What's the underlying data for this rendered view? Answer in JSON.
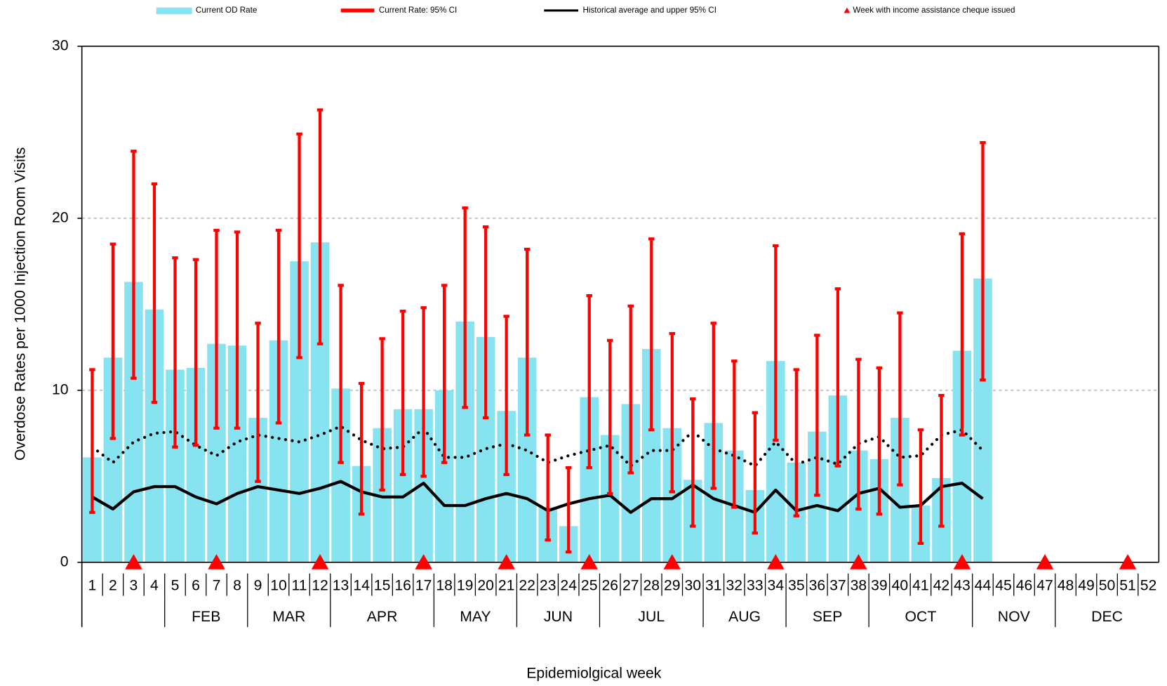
{
  "chart_data": {
    "type": "bar",
    "y_label": "Overdose Rates per 1000 Injection Room Visits",
    "x_label": "Epidemiolgical week",
    "ylim": [
      0,
      30
    ],
    "yticks": [
      0,
      10,
      20,
      30
    ],
    "grid": true,
    "legend": "top",
    "categories": [
      "1",
      "2",
      "3",
      "4",
      "5",
      "6",
      "7",
      "8",
      "9",
      "10",
      "11",
      "12",
      "13",
      "14",
      "15",
      "16",
      "17",
      "18",
      "19",
      "20",
      "21",
      "22",
      "23",
      "24",
      "25",
      "26",
      "27",
      "28",
      "29",
      "30",
      "31",
      "32",
      "33",
      "34",
      "35",
      "36",
      "37",
      "38",
      "39",
      "40",
      "41",
      "42",
      "43",
      "44",
      "45",
      "46",
      "47",
      "48",
      "49",
      "50",
      "51",
      "52"
    ],
    "months": [
      null,
      null,
      null,
      null,
      "FEB",
      "FEB",
      "FEB",
      "FEB",
      "MAR",
      "MAR",
      "MAR",
      "MAR",
      "APR",
      "APR",
      "APR",
      "APR",
      "APR",
      "MAY",
      "MAY",
      "MAY",
      "MAY",
      "JUN",
      "JUN",
      "JUN",
      "JUN",
      "JUL",
      "JUL",
      "JUL",
      "JUL",
      "JUL",
      "AUG",
      "AUG",
      "AUG",
      "AUG",
      "SEP",
      "SEP",
      "SEP",
      "SEP",
      "OCT",
      "OCT",
      "OCT",
      "OCT",
      "OCT",
      "NOV",
      "NOV",
      "NOV",
      "NOV",
      "DEC",
      "DEC",
      "DEC",
      "DEC",
      "DEC"
    ],
    "series": [
      {
        "name": "Current OD Rate",
        "color": "#87e3f0",
        "values": [
          6.1,
          11.9,
          16.3,
          14.7,
          11.2,
          11.3,
          12.7,
          12.6,
          8.4,
          12.9,
          17.5,
          18.6,
          10.1,
          5.6,
          7.8,
          8.9,
          8.9,
          10.0,
          14.0,
          13.1,
          8.8,
          11.9,
          3.2,
          2.1,
          9.6,
          7.4,
          9.2,
          12.4,
          7.8,
          4.8,
          8.1,
          6.5,
          4.2,
          11.7,
          5.8,
          7.6,
          9.7,
          6.5,
          6.0,
          8.4,
          3.3,
          4.9,
          12.3,
          16.5,
          null,
          null,
          null,
          null,
          null,
          null,
          null,
          null
        ]
      },
      {
        "name": "Current Rate: 95% CI",
        "color": "#ff0000",
        "lower": [
          2.9,
          7.2,
          10.7,
          9.3,
          6.7,
          6.8,
          7.8,
          7.8,
          4.7,
          8.1,
          11.9,
          12.7,
          5.8,
          2.8,
          4.2,
          5.1,
          5.0,
          5.8,
          9.0,
          8.4,
          5.1,
          7.4,
          1.3,
          0.6,
          5.5,
          4.0,
          5.2,
          7.7,
          4.1,
          2.1,
          4.3,
          3.2,
          1.7,
          7.1,
          2.7,
          3.9,
          5.6,
          3.1,
          2.8,
          4.5,
          1.1,
          2.1,
          7.4,
          10.6,
          null,
          null,
          null,
          null,
          null,
          null,
          null,
          null
        ],
        "upper": [
          11.2,
          18.5,
          23.9,
          22.0,
          17.7,
          17.6,
          19.3,
          19.2,
          13.9,
          19.3,
          24.9,
          26.3,
          16.1,
          10.4,
          13.0,
          14.6,
          14.8,
          16.1,
          20.6,
          19.5,
          14.3,
          18.2,
          7.4,
          5.5,
          15.5,
          12.9,
          14.9,
          18.8,
          13.3,
          9.5,
          13.9,
          11.7,
          8.7,
          18.4,
          11.2,
          13.2,
          15.9,
          11.8,
          11.3,
          14.5,
          7.7,
          9.7,
          19.1,
          24.4,
          null,
          null,
          null,
          null,
          null,
          null,
          null,
          null
        ]
      },
      {
        "name": "Historical average and upper 95% CI",
        "color": "#000000",
        "values": [
          3.8,
          3.1,
          4.1,
          4.4,
          4.4,
          3.8,
          3.4,
          4.0,
          4.4,
          4.2,
          4.0,
          4.3,
          4.7,
          4.1,
          3.8,
          3.8,
          4.6,
          3.3,
          3.3,
          3.7,
          4.0,
          3.7,
          3.0,
          3.4,
          3.7,
          3.9,
          2.9,
          3.7,
          3.7,
          4.5,
          3.7,
          3.3,
          2.9,
          4.2,
          3.0,
          3.3,
          3.0,
          4.0,
          4.3,
          3.2,
          3.3,
          4.4,
          4.6,
          3.7,
          null,
          null,
          null,
          null,
          null,
          null,
          null,
          null
        ],
        "upper": [
          6.7,
          5.8,
          7.0,
          7.5,
          7.6,
          6.8,
          6.2,
          7.0,
          7.4,
          7.2,
          7.0,
          7.4,
          7.9,
          7.1,
          6.6,
          6.7,
          7.8,
          6.1,
          6.1,
          6.6,
          6.9,
          6.5,
          5.8,
          6.2,
          6.5,
          6.8,
          5.6,
          6.5,
          6.5,
          7.6,
          6.6,
          6.2,
          5.6,
          7.0,
          5.7,
          6.1,
          5.7,
          6.9,
          7.3,
          6.1,
          6.2,
          7.4,
          7.7,
          6.5,
          null,
          null,
          null,
          null,
          null,
          null,
          null,
          null
        ]
      }
    ],
    "markers": {
      "name": "Week with income assistance cheque issued",
      "color": "#ff0000",
      "weeks": [
        3,
        7,
        12,
        17,
        21,
        25,
        29,
        34,
        38,
        43,
        47,
        51
      ]
    }
  }
}
